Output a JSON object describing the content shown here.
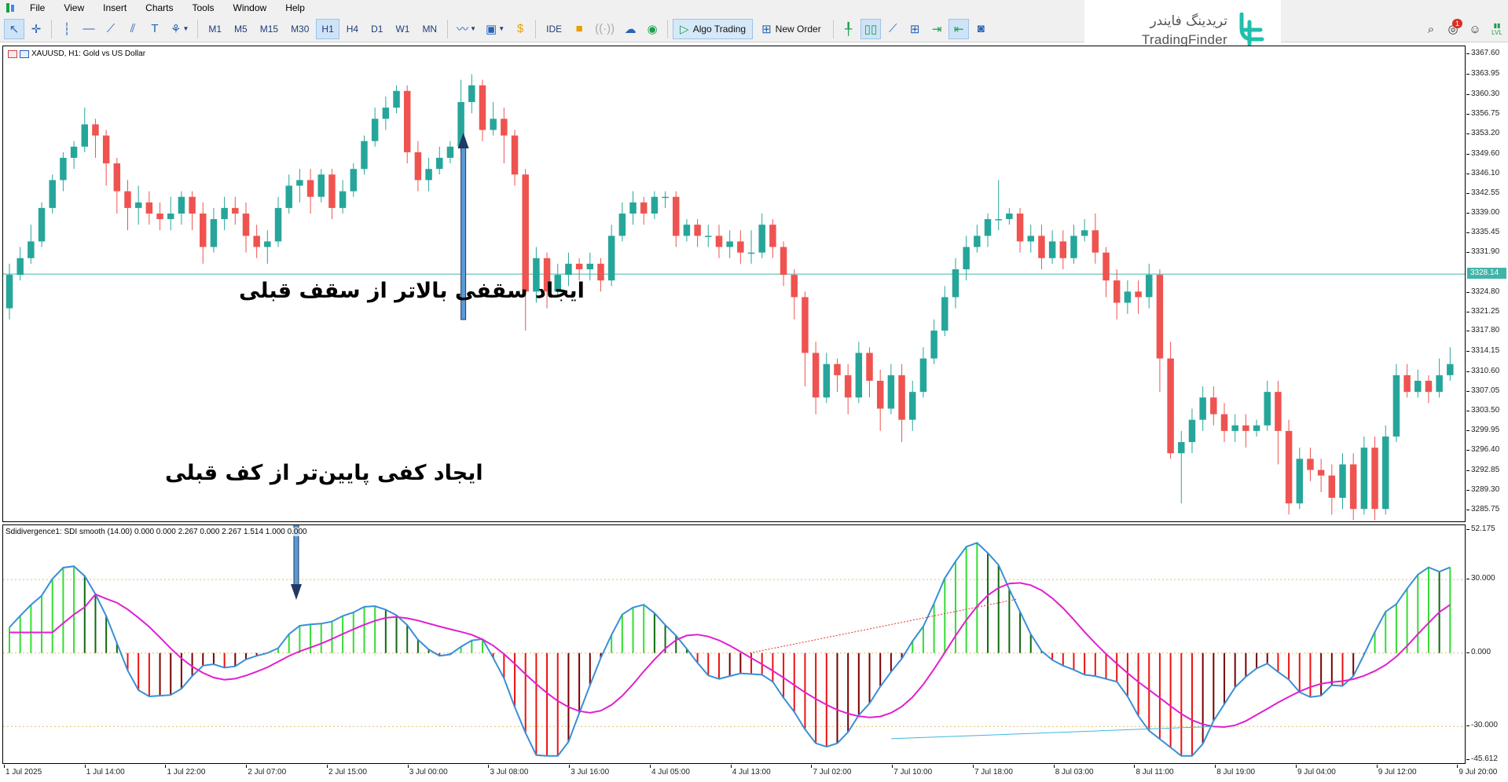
{
  "menu": {
    "items": [
      "File",
      "View",
      "Insert",
      "Charts",
      "Tools",
      "Window",
      "Help"
    ]
  },
  "toolbar": {
    "timeframes": [
      "M1",
      "M5",
      "M15",
      "M30",
      "H1",
      "H4",
      "D1",
      "W1",
      "MN"
    ],
    "active_timeframe": "H1",
    "ide_label": "IDE",
    "algo_trading_label": "Algo Trading",
    "new_order_label": "New Order"
  },
  "brand": {
    "name_fa": "تریدینگ فایندر",
    "name_en": "TradingFinder"
  },
  "right_tools": {
    "notification_count": "1",
    "lvl_label": "LVL"
  },
  "chart": {
    "symbol_label": "XAUUSD, H1:  Gold vs US Dollar",
    "current_price": "3328.14",
    "price_axis": [
      "3367.60",
      "3363.95",
      "3360.30",
      "3356.75",
      "3353.20",
      "3349.60",
      "3346.10",
      "3342.55",
      "3339.00",
      "3335.45",
      "3331.90",
      "3328.14",
      "3324.80",
      "3321.25",
      "3317.80",
      "3314.15",
      "3310.60",
      "3307.05",
      "3303.50",
      "3299.95",
      "3296.40",
      "3292.85",
      "3289.30",
      "3285.75"
    ],
    "time_axis": [
      "1 Jul 2025",
      "1 Jul 14:00",
      "1 Jul 22:00",
      "2 Jul 07:00",
      "2 Jul 15:00",
      "3 Jul 00:00",
      "3 Jul 08:00",
      "3 Jul 16:00",
      "4 Jul 05:00",
      "4 Jul 13:00",
      "7 Jul 02:00",
      "7 Jul 10:00",
      "7 Jul 18:00",
      "8 Jul 03:00",
      "8 Jul 11:00",
      "8 Jul 19:00",
      "9 Jul 04:00",
      "9 Jul 12:00",
      "9 Jul 20:00"
    ],
    "colors": {
      "bull": "#26a69a",
      "bear": "#ef5350",
      "price_line": "#40b4a8"
    }
  },
  "annotations": {
    "higher_high": "ایجاد سقفی بالاتر از سقف قبلی",
    "lower_low": "ایجاد کفی پایین‌تر از کف قبلی"
  },
  "indicator": {
    "label": "Sdidivergence1:  SDI smooth (14.00) 0.000 0.000 2.267 0.000 2.267 1.514 1.000 0.000",
    "axis": [
      "52.175",
      "30.000",
      "0.000",
      "-30.000",
      "-45.612"
    ],
    "colors": {
      "pos_light": "#33dd33",
      "pos_dark": "#0f6b0f",
      "neg_light": "#ee1111",
      "neg_dark": "#7a0000",
      "signal": "#3a8fd6",
      "smooth": "#e020d0",
      "divergence_line": "#e03030",
      "divergence_line2": "#40b8d8"
    }
  },
  "chart_data": {
    "type": "candlestick",
    "title": "XAUUSD, H1: Gold vs US Dollar",
    "ylim": [
      3283.5,
      3369.0
    ],
    "current_price": 3328.14,
    "candles_ohlc": [
      [
        3322,
        3328,
        3320,
        3330
      ],
      [
        3328,
        3331,
        3327,
        3333
      ],
      [
        3331,
        3334,
        3330,
        3337
      ],
      [
        3334,
        3340,
        3333,
        3341
      ],
      [
        3340,
        3345,
        3339,
        3346
      ],
      [
        3345,
        3349,
        3343,
        3350
      ],
      [
        3349,
        3351,
        3347,
        3352
      ],
      [
        3351,
        3355,
        3350,
        3358
      ],
      [
        3355,
        3353,
        3349,
        3356
      ],
      [
        3353,
        3348,
        3344,
        3354
      ],
      [
        3348,
        3343,
        3339,
        3349
      ],
      [
        3343,
        3340,
        3336,
        3345
      ],
      [
        3340,
        3341,
        3337,
        3344
      ],
      [
        3341,
        3339,
        3337,
        3343
      ],
      [
        3339,
        3338,
        3336,
        3341
      ],
      [
        3338,
        3339,
        3336,
        3342
      ],
      [
        3339,
        3342,
        3337,
        3343
      ],
      [
        3342,
        3339,
        3336,
        3343
      ],
      [
        3339,
        3333,
        3330,
        3341
      ],
      [
        3333,
        3338,
        3332,
        3340
      ],
      [
        3338,
        3340,
        3336,
        3342
      ],
      [
        3340,
        3339,
        3337,
        3342
      ],
      [
        3339,
        3335,
        3332,
        3341
      ],
      [
        3335,
        3333,
        3331,
        3337
      ],
      [
        3333,
        3334,
        3330,
        3336
      ],
      [
        3334,
        3340,
        3333,
        3342
      ],
      [
        3340,
        3344,
        3339,
        3346
      ],
      [
        3344,
        3345,
        3341,
        3347
      ],
      [
        3345,
        3342,
        3339,
        3347
      ],
      [
        3342,
        3346,
        3341,
        3347
      ],
      [
        3346,
        3340,
        3338,
        3347
      ],
      [
        3340,
        3343,
        3339,
        3345
      ],
      [
        3343,
        3347,
        3342,
        3348
      ],
      [
        3347,
        3352,
        3346,
        3353
      ],
      [
        3352,
        3356,
        3351,
        3358
      ],
      [
        3356,
        3358,
        3354,
        3360
      ],
      [
        3358,
        3361,
        3357,
        3362
      ],
      [
        3361,
        3350,
        3348,
        3362
      ],
      [
        3350,
        3345,
        3343,
        3352
      ],
      [
        3345,
        3347,
        3343,
        3349
      ],
      [
        3347,
        3349,
        3346,
        3351
      ],
      [
        3349,
        3351,
        3348,
        3352
      ],
      [
        3351,
        3359,
        3350,
        3363
      ],
      [
        3359,
        3362,
        3357,
        3364
      ],
      [
        3362,
        3354,
        3352,
        3363
      ],
      [
        3354,
        3356,
        3353,
        3359
      ],
      [
        3356,
        3353,
        3348,
        3358
      ],
      [
        3353,
        3346,
        3344,
        3354
      ],
      [
        3346,
        3325,
        3318,
        3347
      ],
      [
        3325,
        3331,
        3323,
        3333
      ],
      [
        3331,
        3325,
        3322,
        3332
      ],
      [
        3325,
        3328,
        3324,
        3330
      ],
      [
        3328,
        3330,
        3326,
        3332
      ],
      [
        3330,
        3329,
        3327,
        3331
      ],
      [
        3329,
        3330,
        3327,
        3332
      ],
      [
        3330,
        3327,
        3325,
        3331
      ],
      [
        3327,
        3335,
        3326,
        3337
      ],
      [
        3335,
        3339,
        3334,
        3341
      ],
      [
        3339,
        3341,
        3337,
        3343
      ],
      [
        3341,
        3339,
        3337,
        3342
      ],
      [
        3339,
        3342,
        3338,
        3343
      ],
      [
        3342,
        3342,
        3340,
        3343
      ],
      [
        3342,
        3335,
        3333,
        3343
      ],
      [
        3335,
        3337,
        3334,
        3338
      ],
      [
        3337,
        3335,
        3333,
        3338
      ],
      [
        3335,
        3335,
        3333,
        3337
      ],
      [
        3335,
        3333,
        3331,
        3337
      ],
      [
        3333,
        3334,
        3331,
        3336
      ],
      [
        3334,
        3332,
        3330,
        3336
      ],
      [
        3332,
        3332,
        3330,
        3336
      ],
      [
        3332,
        3337,
        3331,
        3339
      ],
      [
        3337,
        3333,
        3331,
        3338
      ],
      [
        3333,
        3328,
        3326,
        3334
      ],
      [
        3328,
        3324,
        3320,
        3329
      ],
      [
        3324,
        3314,
        3308,
        3325
      ],
      [
        3314,
        3306,
        3303,
        3316
      ],
      [
        3306,
        3312,
        3305,
        3314
      ],
      [
        3312,
        3310,
        3307,
        3313
      ],
      [
        3310,
        3306,
        3303,
        3312
      ],
      [
        3306,
        3314,
        3305,
        3316
      ],
      [
        3314,
        3309,
        3306,
        3315
      ],
      [
        3309,
        3304,
        3300,
        3311
      ],
      [
        3304,
        3310,
        3303,
        3312
      ],
      [
        3310,
        3302,
        3298,
        3312
      ],
      [
        3302,
        3307,
        3300,
        3309
      ],
      [
        3307,
        3313,
        3306,
        3315
      ],
      [
        3313,
        3318,
        3312,
        3320
      ],
      [
        3318,
        3324,
        3317,
        3326
      ],
      [
        3324,
        3329,
        3322,
        3331
      ],
      [
        3329,
        3333,
        3327,
        3335
      ],
      [
        3333,
        3335,
        3332,
        3337
      ],
      [
        3335,
        3338,
        3333,
        3339
      ],
      [
        3338,
        3338,
        3336,
        3345
      ],
      [
        3338,
        3339,
        3337,
        3340
      ],
      [
        3339,
        3334,
        3332,
        3340
      ],
      [
        3334,
        3335,
        3332,
        3337
      ],
      [
        3335,
        3331,
        3329,
        3337
      ],
      [
        3331,
        3334,
        3330,
        3336
      ],
      [
        3334,
        3331,
        3329,
        3336
      ],
      [
        3331,
        3335,
        3330,
        3337
      ],
      [
        3335,
        3336,
        3334,
        3338
      ],
      [
        3336,
        3332,
        3330,
        3339
      ],
      [
        3332,
        3327,
        3324,
        3333
      ],
      [
        3327,
        3323,
        3320,
        3329
      ],
      [
        3323,
        3325,
        3321,
        3327
      ],
      [
        3325,
        3324,
        3321,
        3327
      ],
      [
        3324,
        3328,
        3322,
        3330
      ],
      [
        3328,
        3313,
        3307,
        3329
      ],
      [
        3313,
        3296,
        3295,
        3316
      ],
      [
        3296,
        3298,
        3287,
        3300
      ],
      [
        3298,
        3302,
        3296,
        3304
      ],
      [
        3302,
        3306,
        3300,
        3308
      ],
      [
        3306,
        3303,
        3301,
        3308
      ],
      [
        3303,
        3300,
        3298,
        3305
      ],
      [
        3300,
        3301,
        3298,
        3303
      ],
      [
        3301,
        3300,
        3297,
        3303
      ],
      [
        3300,
        3301,
        3299,
        3302
      ],
      [
        3301,
        3307,
        3300,
        3309
      ],
      [
        3307,
        3300,
        3294,
        3309
      ],
      [
        3300,
        3287,
        3285,
        3302
      ],
      [
        3287,
        3295,
        3286,
        3297
      ],
      [
        3295,
        3293,
        3291,
        3297
      ],
      [
        3293,
        3292,
        3289,
        3295
      ],
      [
        3292,
        3288,
        3285,
        3294
      ],
      [
        3288,
        3294,
        3286,
        3296
      ],
      [
        3294,
        3286,
        3284,
        3296
      ],
      [
        3286,
        3297,
        3285,
        3299
      ],
      [
        3297,
        3286,
        3284,
        3299
      ],
      [
        3286,
        3299,
        3285,
        3301
      ],
      [
        3299,
        3310,
        3298,
        3312
      ],
      [
        3310,
        3307,
        3306,
        3312
      ],
      [
        3307,
        3309,
        3306,
        3311
      ],
      [
        3309,
        3307,
        3305,
        3310
      ],
      [
        3307,
        3310,
        3306,
        3313
      ],
      [
        3310,
        3312,
        3309,
        3315
      ]
    ],
    "indicator": {
      "name": "SDI smooth (14)",
      "ylim": [
        -45.612,
        52.175
      ],
      "levels": [
        30,
        0,
        -30
      ]
    }
  }
}
